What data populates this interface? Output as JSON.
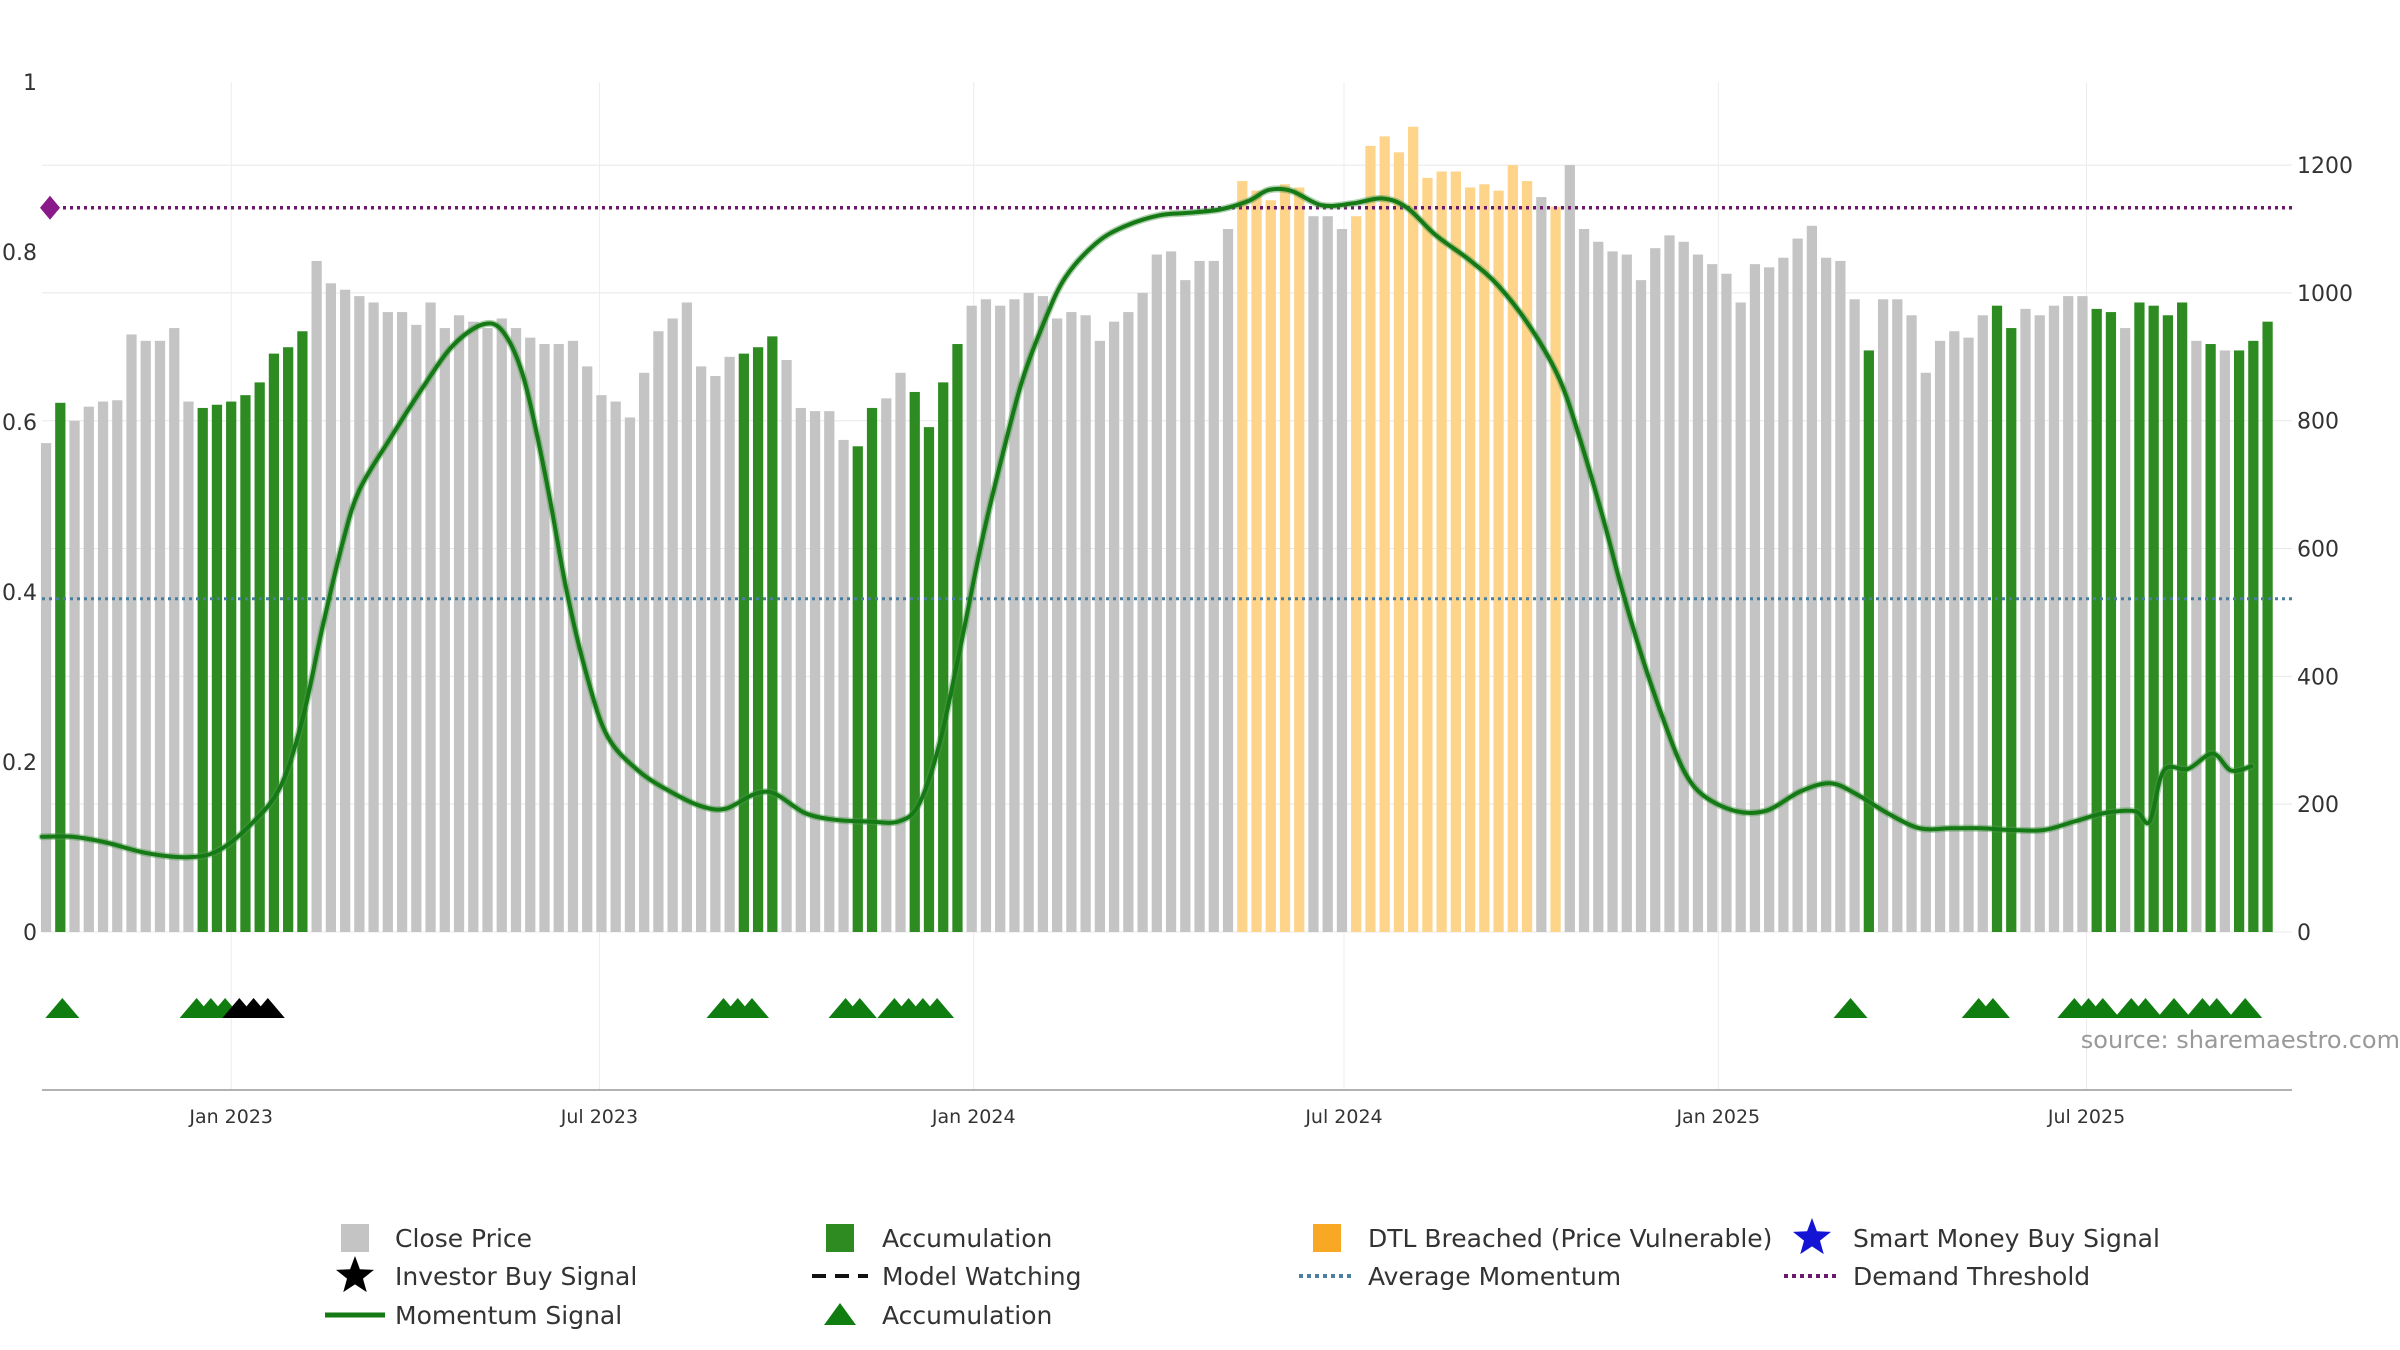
{
  "source_text": "source: sharemaestro.com",
  "colors": {
    "close": "#c4c4c4",
    "accumulation": "#2e8b22",
    "dtl": "#fdd48a",
    "momentum": "#157a15",
    "average": "#4a7fa0",
    "threshold": "#6b1a6b",
    "triangle_green": "#0f7d0f",
    "triangle_black": "#000000",
    "smart_money": "#1414d4"
  },
  "legend": [
    {
      "label": "Close Price",
      "symbol": "gray-square"
    },
    {
      "label": "Accumulation",
      "symbol": "green-square"
    },
    {
      "label": "DTL Breached (Price Vulnerable)",
      "symbol": "orange-square"
    },
    {
      "label": "Smart Money Buy Signal",
      "symbol": "blue-star"
    },
    {
      "label": "Investor Buy Signal",
      "symbol": "black-star"
    },
    {
      "label": "Model Watching",
      "symbol": "dashed-line"
    },
    {
      "label": "Average Momentum",
      "symbol": "dotted-blue"
    },
    {
      "label": "Demand Threshold",
      "symbol": "dotted-purple"
    },
    {
      "label": "Momentum Signal",
      "symbol": "green-line"
    },
    {
      "label": "Accumulation",
      "symbol": "green-triangle"
    }
  ],
  "chart_data": {
    "type": "bar",
    "grid": true,
    "x_axis": {
      "type": "date",
      "start": "2022-09-30",
      "end": "2025-10-10",
      "ticks": [
        {
          "date": "2023-01-01",
          "label": "Jan 2023"
        },
        {
          "date": "2023-07-01",
          "label": "Jul 2023"
        },
        {
          "date": "2024-01-01",
          "label": "Jan 2024"
        },
        {
          "date": "2024-07-01",
          "label": "Jul 2024"
        },
        {
          "date": "2025-01-01",
          "label": "Jan 2025"
        },
        {
          "date": "2025-07-01",
          "label": "Jul 2025"
        }
      ]
    },
    "left_axis": {
      "ylim": [
        0,
        1
      ],
      "ticks": [
        0,
        0.2,
        0.4,
        0.6,
        0.8,
        1
      ]
    },
    "right_axis": {
      "ylim": [
        0,
        1330
      ],
      "ticks": [
        0,
        200,
        400,
        600,
        800,
        1000,
        1200
      ]
    },
    "series": [
      {
        "name": "Close Price",
        "axis": "right",
        "start_date": "2022-10-02",
        "interval_days": 7,
        "values": [
          765,
          828,
          800,
          822,
          830,
          832,
          935,
          925,
          925,
          945,
          830,
          820,
          825,
          830,
          840,
          860,
          905,
          915,
          940,
          1050,
          1015,
          1005,
          995,
          985,
          970,
          970,
          950,
          985,
          945,
          965,
          955,
          945,
          960,
          945,
          930,
          920,
          920,
          925,
          885,
          840,
          830,
          805,
          875,
          940,
          960,
          985,
          885,
          870,
          900,
          905,
          915,
          932,
          895,
          820,
          815,
          815,
          770,
          760,
          820,
          835,
          875,
          845,
          790,
          860,
          920,
          980,
          990,
          980,
          990,
          1000,
          995,
          960,
          970,
          965,
          925,
          955,
          970,
          1000,
          1060,
          1065,
          1020,
          1050,
          1050,
          1100,
          1175,
          1160,
          1145,
          1170,
          1165,
          1120,
          1120,
          1100,
          1120,
          1230,
          1245,
          1220,
          1260,
          1180,
          1190,
          1190,
          1165,
          1170,
          1160,
          1200,
          1175,
          1150,
          1135,
          1200,
          1100,
          1080,
          1065,
          1060,
          1020,
          1070,
          1090,
          1080,
          1060,
          1045,
          1030,
          985,
          1045,
          1040,
          1055,
          1085,
          1105,
          1055,
          1050,
          990,
          910,
          990,
          990,
          965,
          875,
          925,
          940,
          930,
          965,
          980,
          945,
          975,
          965,
          980,
          995,
          995,
          975,
          970,
          945,
          985,
          980,
          965,
          985,
          925,
          920,
          910,
          910,
          925,
          955
        ]
      },
      {
        "name": "Accumulation",
        "axis": "right",
        "indices": [
          1,
          11,
          12,
          13,
          14,
          15,
          16,
          17,
          18,
          49,
          50,
          51,
          57,
          58,
          61,
          62,
          63,
          64,
          128,
          137,
          138,
          144,
          145,
          147,
          148,
          149,
          150,
          152,
          154,
          155,
          156
        ]
      },
      {
        "name": "DTL Breached (Price Vulnerable)",
        "axis": "right",
        "indices": [
          84,
          85,
          86,
          87,
          88,
          92,
          93,
          94,
          95,
          96,
          97,
          98,
          99,
          100,
          101,
          102,
          103,
          104,
          106
        ]
      },
      {
        "name": "Momentum Signal",
        "axis": "left",
        "points": [
          [
            "2022-09-30",
            0.112
          ],
          [
            "2022-10-15",
            0.112
          ],
          [
            "2022-11-01",
            0.105
          ],
          [
            "2022-11-20",
            0.093
          ],
          [
            "2022-12-10",
            0.088
          ],
          [
            "2022-12-25",
            0.095
          ],
          [
            "2023-01-10",
            0.125
          ],
          [
            "2023-01-25",
            0.17
          ],
          [
            "2023-02-05",
            0.25
          ],
          [
            "2023-02-15",
            0.36
          ],
          [
            "2023-02-25",
            0.46
          ],
          [
            "2023-03-05",
            0.52
          ],
          [
            "2023-03-20",
            0.58
          ],
          [
            "2023-04-05",
            0.64
          ],
          [
            "2023-04-20",
            0.69
          ],
          [
            "2023-05-05",
            0.715
          ],
          [
            "2023-05-15",
            0.705
          ],
          [
            "2023-05-25",
            0.65
          ],
          [
            "2023-06-05",
            0.53
          ],
          [
            "2023-06-15",
            0.4
          ],
          [
            "2023-06-25",
            0.3
          ],
          [
            "2023-07-05",
            0.23
          ],
          [
            "2023-07-20",
            0.19
          ],
          [
            "2023-08-05",
            0.165
          ],
          [
            "2023-08-20",
            0.148
          ],
          [
            "2023-09-01",
            0.145
          ],
          [
            "2023-09-15",
            0.162
          ],
          [
            "2023-09-25",
            0.163
          ],
          [
            "2023-10-10",
            0.14
          ],
          [
            "2023-10-25",
            0.132
          ],
          [
            "2023-11-10",
            0.13
          ],
          [
            "2023-11-25",
            0.13
          ],
          [
            "2023-12-05",
            0.15
          ],
          [
            "2023-12-15",
            0.22
          ],
          [
            "2023-12-25",
            0.33
          ],
          [
            "2024-01-05",
            0.46
          ],
          [
            "2024-01-15",
            0.56
          ],
          [
            "2024-01-25",
            0.65
          ],
          [
            "2024-02-05",
            0.72
          ],
          [
            "2024-02-15",
            0.77
          ],
          [
            "2024-03-01",
            0.81
          ],
          [
            "2024-03-15",
            0.83
          ],
          [
            "2024-04-01",
            0.843
          ],
          [
            "2024-04-15",
            0.846
          ],
          [
            "2024-05-01",
            0.85
          ],
          [
            "2024-05-15",
            0.86
          ],
          [
            "2024-05-25",
            0.873
          ],
          [
            "2024-06-05",
            0.872
          ],
          [
            "2024-06-20",
            0.855
          ],
          [
            "2024-07-05",
            0.857
          ],
          [
            "2024-07-20",
            0.863
          ],
          [
            "2024-08-01",
            0.852
          ],
          [
            "2024-08-15",
            0.82
          ],
          [
            "2024-09-01",
            0.79
          ],
          [
            "2024-09-15",
            0.76
          ],
          [
            "2024-10-01",
            0.71
          ],
          [
            "2024-10-15",
            0.65
          ],
          [
            "2024-10-25",
            0.58
          ],
          [
            "2024-11-05",
            0.49
          ],
          [
            "2024-11-15",
            0.4
          ],
          [
            "2024-11-25",
            0.32
          ],
          [
            "2024-12-05",
            0.25
          ],
          [
            "2024-12-15",
            0.19
          ],
          [
            "2024-12-25",
            0.16
          ],
          [
            "2025-01-10",
            0.142
          ],
          [
            "2025-01-25",
            0.143
          ],
          [
            "2025-02-10",
            0.165
          ],
          [
            "2025-02-25",
            0.175
          ],
          [
            "2025-03-10",
            0.162
          ],
          [
            "2025-03-25",
            0.14
          ],
          [
            "2025-04-10",
            0.122
          ],
          [
            "2025-04-25",
            0.122
          ],
          [
            "2025-05-10",
            0.122
          ],
          [
            "2025-05-25",
            0.12
          ],
          [
            "2025-06-10",
            0.12
          ],
          [
            "2025-06-25",
            0.13
          ],
          [
            "2025-07-10",
            0.14
          ],
          [
            "2025-07-25",
            0.142
          ],
          [
            "2025-08-01",
            0.13
          ],
          [
            "2025-08-08",
            0.19
          ],
          [
            "2025-08-20",
            0.192
          ],
          [
            "2025-09-01",
            0.21
          ],
          [
            "2025-09-10",
            0.19
          ],
          [
            "2025-09-20",
            0.195
          ]
        ]
      },
      {
        "name": "Average Momentum",
        "axis": "left",
        "value": 0.392
      },
      {
        "name": "Demand Threshold",
        "axis": "left",
        "value": 0.852
      },
      {
        "name": "Accumulation",
        "marker": "triangle",
        "points": [
          [
            "2022-10-10",
            "green"
          ],
          [
            "2022-12-15",
            "green"
          ],
          [
            "2022-12-22",
            "green"
          ],
          [
            "2022-12-29",
            "green"
          ],
          [
            "2023-01-05",
            "black"
          ],
          [
            "2023-01-12",
            "black"
          ],
          [
            "2023-01-19",
            "black"
          ],
          [
            "2023-08-31",
            "green"
          ],
          [
            "2023-09-07",
            "green"
          ],
          [
            "2023-09-14",
            "green"
          ],
          [
            "2023-10-30",
            "green"
          ],
          [
            "2023-11-06",
            "green"
          ],
          [
            "2023-11-23",
            "green"
          ],
          [
            "2023-11-30",
            "green"
          ],
          [
            "2023-12-07",
            "green"
          ],
          [
            "2023-12-14",
            "green"
          ],
          [
            "2025-03-07",
            "green"
          ],
          [
            "2025-05-09",
            "green"
          ],
          [
            "2025-05-16",
            "green"
          ],
          [
            "2025-06-25",
            "green"
          ],
          [
            "2025-07-02",
            "green"
          ],
          [
            "2025-07-09",
            "green"
          ],
          [
            "2025-07-23",
            "green"
          ],
          [
            "2025-07-30",
            "green"
          ],
          [
            "2025-08-13",
            "green"
          ],
          [
            "2025-08-27",
            "green"
          ],
          [
            "2025-09-03",
            "green"
          ],
          [
            "2025-09-17",
            "green"
          ]
        ]
      }
    ]
  }
}
